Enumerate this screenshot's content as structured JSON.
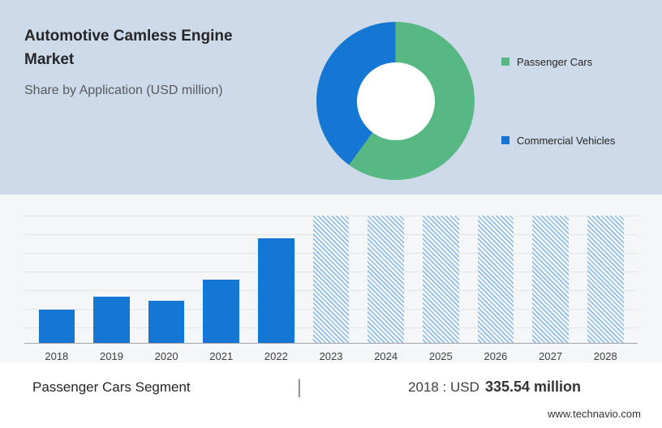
{
  "header": {
    "title": "Automotive Camless Engine Market",
    "subtitle": "Share by Application (USD million)"
  },
  "donut": {
    "type": "pie",
    "segments": [
      {
        "label": "Passenger Cars",
        "color": "#57b884",
        "value": 60
      },
      {
        "label": "Commercial Vehicles",
        "color": "#1377d3",
        "value": 40
      }
    ]
  },
  "chart_data": {
    "type": "bar",
    "title": "Passenger Cars Segment (USD million)",
    "categories": [
      "2018",
      "2019",
      "2020",
      "2021",
      "2022",
      "2023",
      "2024",
      "2025",
      "2026",
      "2027",
      "2028"
    ],
    "values": [
      335.54,
      470,
      430,
      650,
      1070,
      null,
      null,
      null,
      null,
      null,
      null
    ],
    "forecast_categories": [
      "2023",
      "2024",
      "2025",
      "2026",
      "2027",
      "2028"
    ],
    "xlabel": "",
    "ylabel": "",
    "ylim": [
      0,
      1300
    ],
    "grid": true,
    "legend_position": "none",
    "bar_color": "#1377d3",
    "forecast_hatch_color": "#9cc3e5"
  },
  "footer": {
    "segment_label": "Passenger Cars Segment",
    "separator": "|",
    "value_prefix": "2018 : USD",
    "value": "335.54 million"
  },
  "page": {
    "website": "www.technavio.com"
  }
}
